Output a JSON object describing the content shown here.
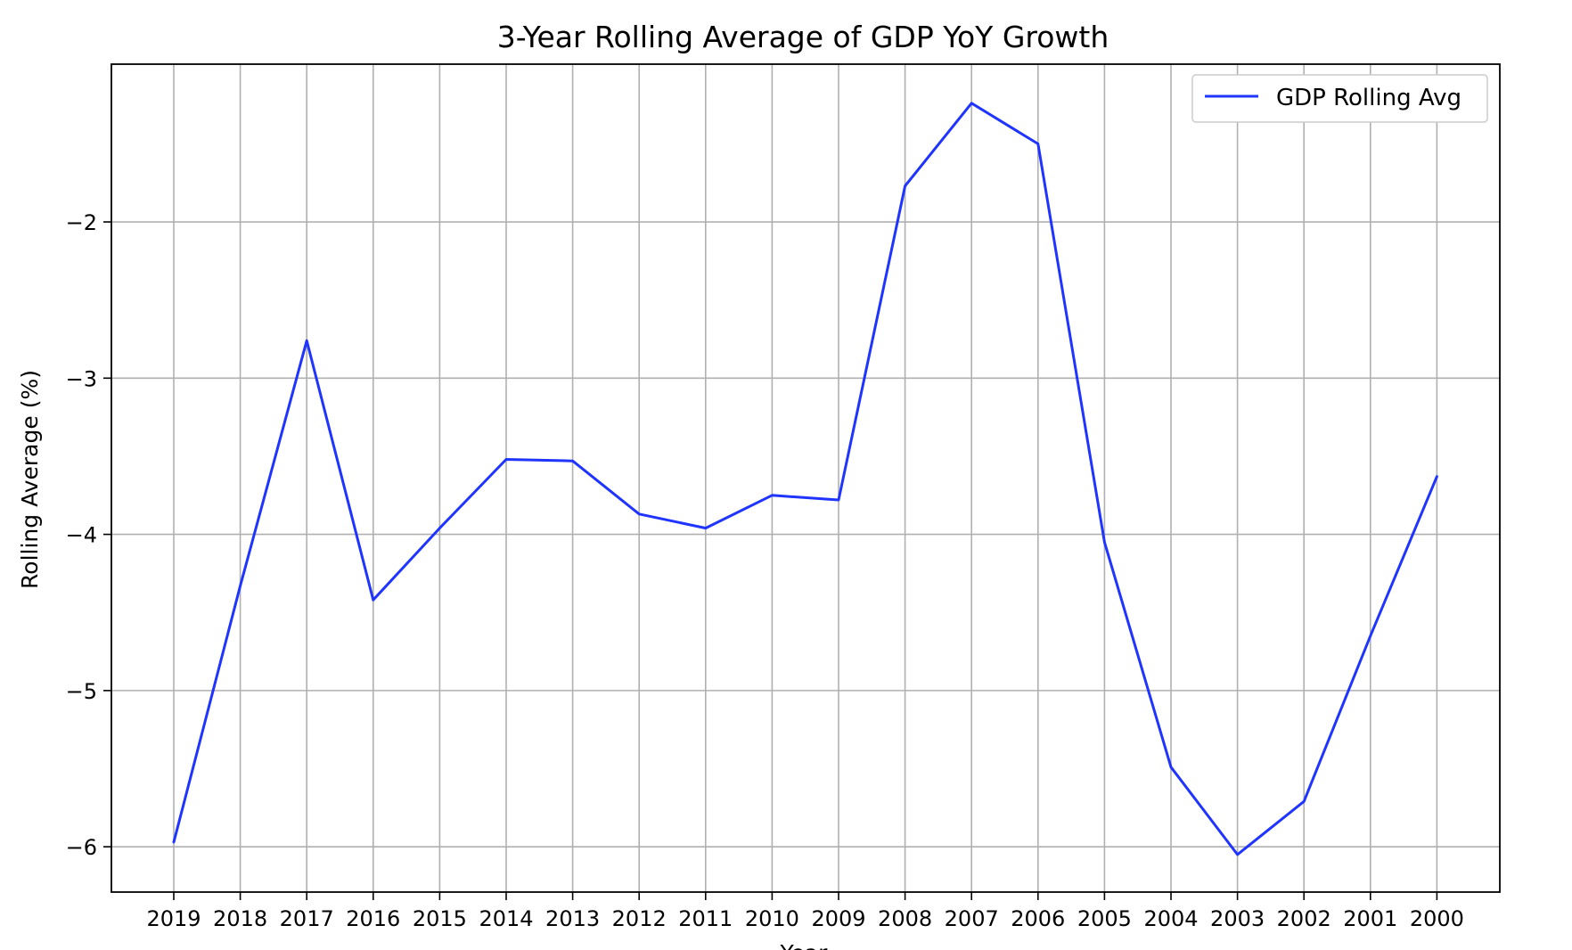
{
  "chart_data": {
    "type": "line",
    "title": "3-Year Rolling Average of GDP YoY Growth",
    "xlabel": "Year",
    "ylabel": "Rolling Average (%)",
    "categories": [
      "2019",
      "2018",
      "2017",
      "2016",
      "2015",
      "2014",
      "2013",
      "2012",
      "2011",
      "2010",
      "2009",
      "2008",
      "2007",
      "2006",
      "2005",
      "2004",
      "2003",
      "2002",
      "2001",
      "2000"
    ],
    "series": [
      {
        "name": "GDP Rolling Avg",
        "color": "#1f35ff",
        "values": [
          -5.97,
          -4.33,
          -2.76,
          -4.42,
          -3.96,
          -3.52,
          -3.53,
          -3.87,
          -3.96,
          -3.75,
          -3.78,
          -1.77,
          -1.24,
          -1.5,
          -4.05,
          -5.49,
          -6.05,
          -5.71,
          -4.65,
          -3.63
        ]
      }
    ],
    "yticks": [
      -2,
      -3,
      -4,
      -5,
      -6
    ],
    "ytick_labels": [
      "−2",
      "−3",
      "−4",
      "−5",
      "−6"
    ],
    "ylim": [
      -6.29,
      -0.99
    ],
    "grid": true,
    "legend": "top-right"
  }
}
